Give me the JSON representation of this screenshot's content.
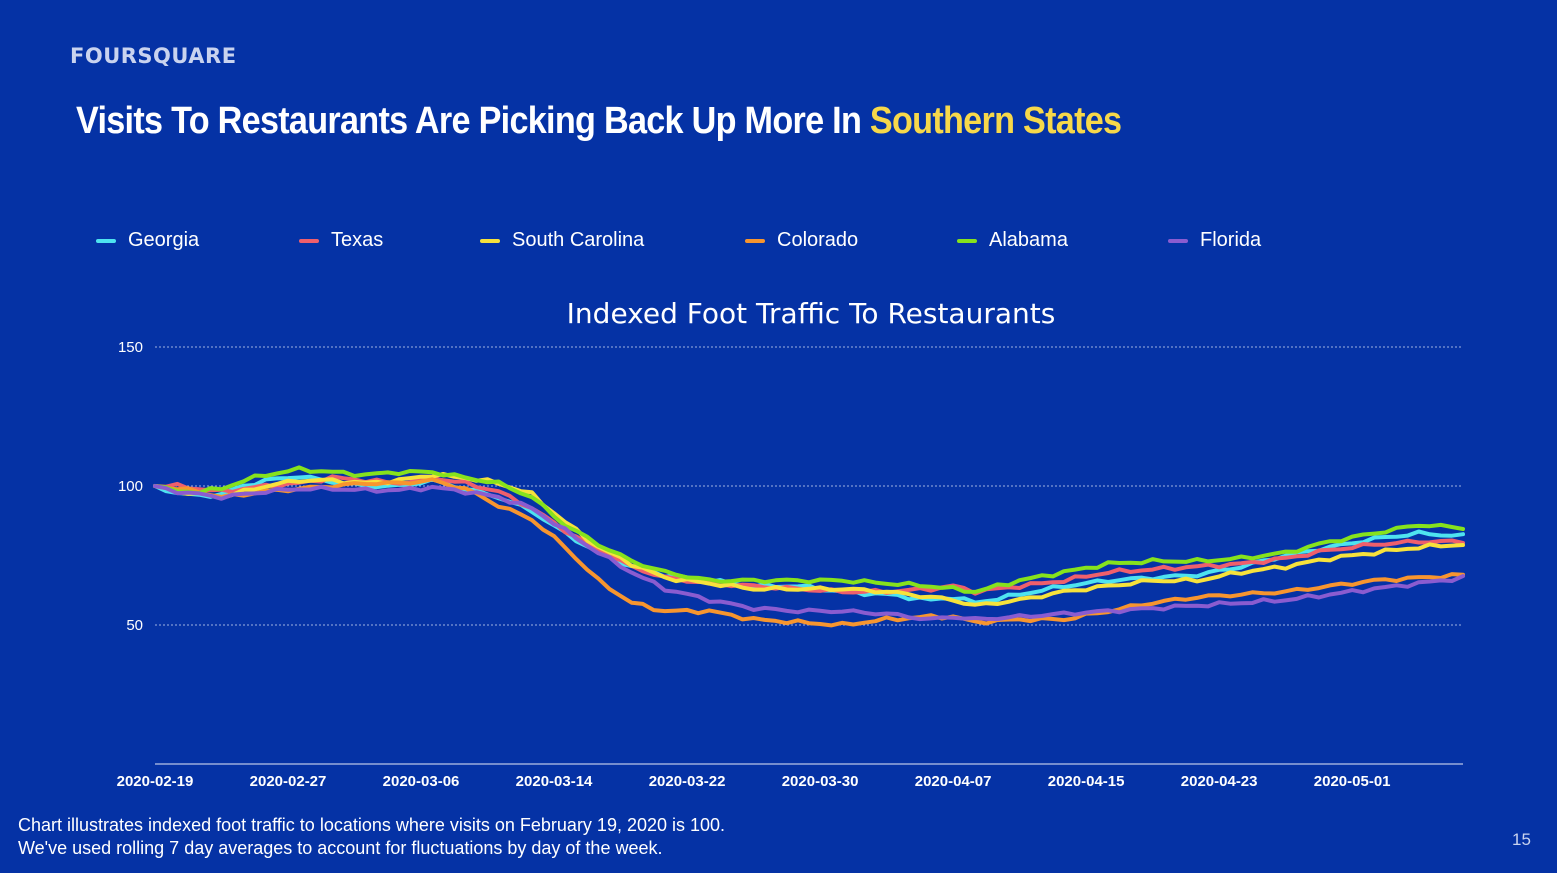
{
  "header": {
    "brand": "FOURSQUARE",
    "title_main": "Visits To Restaurants Are Picking Back Up More In ",
    "title_highlight": "Southern States"
  },
  "chart_data": {
    "type": "line",
    "title": "Indexed Foot Traffic To Restaurants",
    "xlabel": "",
    "ylabel": "",
    "ylim": [
      0,
      150
    ],
    "yticks": [
      50,
      100,
      150
    ],
    "grid": true,
    "legend_position": "top",
    "x_start": "2020-02-19",
    "x_ticks": [
      "2020-02-19",
      "2020-02-27",
      "2020-03-06",
      "2020-03-14",
      "2020-03-22",
      "2020-03-30",
      "2020-04-07",
      "2020-04-15",
      "2020-04-23",
      "2020-05-01"
    ],
    "series": [
      {
        "name": "Georgia",
        "color": "#4ee3f0",
        "keypoints": [
          [
            0,
            100
          ],
          [
            2,
            97.5
          ],
          [
            4,
            96.5
          ],
          [
            6,
            97
          ],
          [
            8,
            100
          ],
          [
            10,
            102
          ],
          [
            13,
            103.5
          ],
          [
            16,
            101.5
          ],
          [
            19,
            100
          ],
          [
            22,
            100
          ],
          [
            25,
            102
          ],
          [
            28,
            99
          ],
          [
            31,
            96
          ],
          [
            34,
            91
          ],
          [
            37,
            83
          ],
          [
            40,
            76
          ],
          [
            43,
            71
          ],
          [
            46,
            68
          ],
          [
            50,
            66
          ],
          [
            54,
            64
          ],
          [
            58,
            64
          ],
          [
            62,
            62
          ],
          [
            66,
            61
          ],
          [
            70,
            59
          ],
          [
            72,
            60
          ],
          [
            74,
            58
          ],
          [
            78,
            61
          ],
          [
            82,
            64
          ],
          [
            86,
            66
          ],
          [
            90,
            67
          ],
          [
            94,
            68
          ],
          [
            98,
            71
          ],
          [
            102,
            75
          ],
          [
            106,
            78
          ],
          [
            110,
            81
          ],
          [
            114,
            83
          ],
          [
            118,
            82
          ]
        ]
      },
      {
        "name": "Texas",
        "color": "#ef5f6c",
        "keypoints": [
          [
            0,
            100
          ],
          [
            2,
            100
          ],
          [
            4,
            99
          ],
          [
            6,
            98
          ],
          [
            8,
            99
          ],
          [
            10,
            100
          ],
          [
            13,
            101
          ],
          [
            16,
            103
          ],
          [
            19,
            102
          ],
          [
            22,
            101
          ],
          [
            25,
            103
          ],
          [
            28,
            101
          ],
          [
            31,
            98
          ],
          [
            34,
            92
          ],
          [
            37,
            84
          ],
          [
            40,
            77
          ],
          [
            43,
            71
          ],
          [
            46,
            67
          ],
          [
            50,
            65
          ],
          [
            54,
            64
          ],
          [
            58,
            63
          ],
          [
            62,
            62
          ],
          [
            66,
            62
          ],
          [
            70,
            63
          ],
          [
            72,
            64
          ],
          [
            74,
            62
          ],
          [
            78,
            64
          ],
          [
            82,
            66
          ],
          [
            86,
            69
          ],
          [
            90,
            70
          ],
          [
            94,
            71
          ],
          [
            98,
            72
          ],
          [
            102,
            74
          ],
          [
            106,
            77
          ],
          [
            110,
            79
          ],
          [
            114,
            80
          ],
          [
            118,
            80
          ]
        ]
      },
      {
        "name": "South Carolina",
        "color": "#f7e23c",
        "keypoints": [
          [
            0,
            100
          ],
          [
            2,
            98
          ],
          [
            4,
            97
          ],
          [
            6,
            96
          ],
          [
            8,
            98
          ],
          [
            10,
            100
          ],
          [
            13,
            102
          ],
          [
            16,
            102
          ],
          [
            19,
            101
          ],
          [
            22,
            102
          ],
          [
            25,
            104
          ],
          [
            28,
            103
          ],
          [
            31,
            101
          ],
          [
            34,
            97
          ],
          [
            37,
            87
          ],
          [
            40,
            78
          ],
          [
            43,
            72
          ],
          [
            46,
            67
          ],
          [
            50,
            65
          ],
          [
            54,
            63
          ],
          [
            58,
            63
          ],
          [
            62,
            63
          ],
          [
            66,
            62
          ],
          [
            70,
            60
          ],
          [
            72,
            59
          ],
          [
            74,
            57
          ],
          [
            78,
            59
          ],
          [
            82,
            62
          ],
          [
            86,
            64
          ],
          [
            90,
            66
          ],
          [
            94,
            66
          ],
          [
            98,
            69
          ],
          [
            102,
            71
          ],
          [
            106,
            74
          ],
          [
            110,
            76
          ],
          [
            114,
            78
          ],
          [
            118,
            79
          ]
        ]
      },
      {
        "name": "Colorado",
        "color": "#f7952f",
        "keypoints": [
          [
            0,
            100
          ],
          [
            2,
            99
          ],
          [
            4,
            98
          ],
          [
            6,
            96
          ],
          [
            8,
            97
          ],
          [
            10,
            98
          ],
          [
            13,
            99
          ],
          [
            16,
            100
          ],
          [
            19,
            101
          ],
          [
            22,
            101
          ],
          [
            25,
            102
          ],
          [
            28,
            99
          ],
          [
            31,
            93
          ],
          [
            34,
            88
          ],
          [
            37,
            78
          ],
          [
            40,
            66
          ],
          [
            43,
            58
          ],
          [
            46,
            55
          ],
          [
            50,
            55
          ],
          [
            54,
            52
          ],
          [
            58,
            51
          ],
          [
            62,
            50
          ],
          [
            66,
            52
          ],
          [
            70,
            53
          ],
          [
            72,
            53
          ],
          [
            74,
            51
          ],
          [
            78,
            52
          ],
          [
            82,
            52
          ],
          [
            86,
            55
          ],
          [
            90,
            58
          ],
          [
            94,
            60
          ],
          [
            98,
            61
          ],
          [
            102,
            62
          ],
          [
            106,
            64
          ],
          [
            110,
            66
          ],
          [
            114,
            67
          ],
          [
            118,
            68
          ]
        ]
      },
      {
        "name": "Alabama",
        "color": "#86e21d",
        "keypoints": [
          [
            0,
            100
          ],
          [
            2,
            98
          ],
          [
            4,
            98
          ],
          [
            6,
            99
          ],
          [
            8,
            102
          ],
          [
            10,
            104
          ],
          [
            13,
            106
          ],
          [
            16,
            105
          ],
          [
            19,
            104
          ],
          [
            22,
            105
          ],
          [
            25,
            105
          ],
          [
            28,
            103
          ],
          [
            31,
            101
          ],
          [
            34,
            96
          ],
          [
            37,
            86
          ],
          [
            40,
            79
          ],
          [
            43,
            73
          ],
          [
            46,
            69
          ],
          [
            50,
            66
          ],
          [
            54,
            66
          ],
          [
            58,
            66
          ],
          [
            62,
            66
          ],
          [
            66,
            65
          ],
          [
            70,
            64
          ],
          [
            72,
            63
          ],
          [
            74,
            62
          ],
          [
            78,
            66
          ],
          [
            82,
            69
          ],
          [
            86,
            72
          ],
          [
            90,
            73
          ],
          [
            94,
            73
          ],
          [
            98,
            74
          ],
          [
            102,
            76
          ],
          [
            106,
            80
          ],
          [
            110,
            83
          ],
          [
            114,
            86
          ],
          [
            118,
            85
          ]
        ]
      },
      {
        "name": "Florida",
        "color": "#8a5cd0",
        "keypoints": [
          [
            0,
            100
          ],
          [
            2,
            98
          ],
          [
            4,
            97
          ],
          [
            6,
            96
          ],
          [
            8,
            97
          ],
          [
            10,
            98
          ],
          [
            13,
            99
          ],
          [
            16,
            99
          ],
          [
            19,
            98.5
          ],
          [
            22,
            98.5
          ],
          [
            25,
            99.5
          ],
          [
            28,
            98
          ],
          [
            31,
            96
          ],
          [
            34,
            92
          ],
          [
            37,
            84
          ],
          [
            40,
            76
          ],
          [
            43,
            69
          ],
          [
            46,
            63
          ],
          [
            50,
            59
          ],
          [
            54,
            56
          ],
          [
            58,
            55
          ],
          [
            62,
            55
          ],
          [
            66,
            54
          ],
          [
            70,
            52
          ],
          [
            72,
            53
          ],
          [
            74,
            52
          ],
          [
            78,
            53
          ],
          [
            82,
            54
          ],
          [
            86,
            55
          ],
          [
            90,
            56
          ],
          [
            94,
            57
          ],
          [
            98,
            58
          ],
          [
            102,
            59
          ],
          [
            106,
            61
          ],
          [
            110,
            63
          ],
          [
            114,
            65
          ],
          [
            118,
            67
          ]
        ]
      }
    ]
  },
  "footer": {
    "note_line1": "Chart illustrates indexed foot traffic to locations where visits on February 19, 2020 is 100.",
    "note_line2": "We've used rolling 7 day averages to account for fluctuations by day of the week.",
    "page_number": "15"
  }
}
